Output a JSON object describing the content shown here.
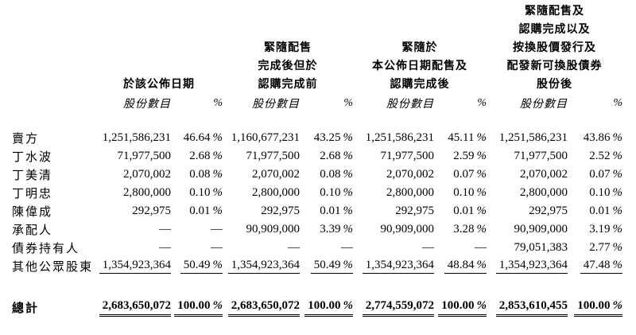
{
  "page": {
    "background_color": "#ffffff",
    "text_color": "#000000"
  },
  "table": {
    "column_groups": [
      {
        "lines": [
          "於該公佈日期"
        ]
      },
      {
        "lines": [
          "緊隨配售",
          "完成後但於",
          "認購完成前"
        ]
      },
      {
        "lines": [
          "緊隨於",
          "本公佈日期配售及",
          "認購完成後"
        ]
      },
      {
        "lines": [
          "緊隨配售及",
          "認購完成以及",
          "按換股價發行及",
          "配發新可換股債券",
          "股份後"
        ]
      }
    ],
    "sub_headers": {
      "shares": "股份數目",
      "percent": "%"
    },
    "rows": [
      {
        "label": "賣方",
        "style": "normal",
        "cells": [
          "1,251,586,231",
          "46.64%",
          "1,160,677,231",
          "43.25%",
          "1,251,586,231",
          "45.11%",
          "1,251,586,231",
          "43.86%"
        ]
      },
      {
        "label": "丁水波",
        "style": "normal",
        "cells": [
          "71,977,500",
          "2.68%",
          "71,977,500",
          "2.68%",
          "71,977,500",
          "2.59%",
          "71,977,500",
          "2.52%"
        ]
      },
      {
        "label": "丁美清",
        "style": "normal",
        "cells": [
          "2,070,002",
          "0.08%",
          "2,070,002",
          "0.08%",
          "2,070,002",
          "0.07%",
          "2,070,002",
          "0.07%"
        ]
      },
      {
        "label": "丁明忠",
        "style": "normal",
        "cells": [
          "2,800,000",
          "0.10%",
          "2,800,000",
          "0.10%",
          "2,800,000",
          "0.10%",
          "2,800,000",
          "0.10%"
        ]
      },
      {
        "label": "陳偉成",
        "style": "normal",
        "cells": [
          "292,975",
          "0.01%",
          "292,975",
          "0.01%",
          "292,975",
          "0.01%",
          "292,975",
          "0.01%"
        ]
      },
      {
        "label": "承配人",
        "style": "normal",
        "cells": [
          "—",
          "—",
          "90,909,000",
          "3.39%",
          "90,909,000",
          "3.28%",
          "90,909,000",
          "3.19%"
        ]
      },
      {
        "label": "債券持有人",
        "style": "normal",
        "cells": [
          "—",
          "—",
          "—",
          "—",
          "—",
          "—",
          "79,051,383",
          "2.77%"
        ]
      },
      {
        "label": "其他公眾股東",
        "style": "subtotal",
        "cells": [
          "1,354,923,364",
          "50.49%",
          "1,354,923,364",
          "50.49%",
          "1,354,923,364",
          "48.84%",
          "1,354,923,364",
          "47.48%"
        ]
      },
      {
        "label": "總計",
        "style": "total",
        "cells": [
          "2,683,650,072",
          "100.00%",
          "2,683,650,072",
          "100.00%",
          "2,774,559,072",
          "100.00%",
          "2,853,610,455",
          "100.00%"
        ]
      }
    ]
  }
}
